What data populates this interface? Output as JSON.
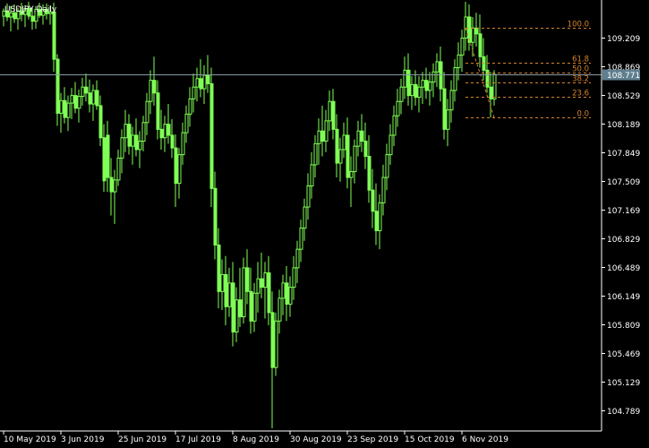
{
  "chart_data": {
    "type": "candlestick",
    "title": "USDJPY,Daily",
    "symbol": "USDJPY",
    "timeframe": "Daily",
    "background_color": "#000000",
    "candle_color": "#7fff55",
    "axis_color": "#ffffff",
    "fib_color": "#d9822b",
    "current_price": 108.771,
    "current_price_label": "108.771",
    "current_price_badge_color": "#5f7f8f",
    "grid": false,
    "ylim": [
      104.58,
      109.63
    ],
    "y_ticks": [
      "109.209",
      "108.869",
      "108.529",
      "108.189",
      "107.849",
      "107.509",
      "107.169",
      "106.829",
      "106.489",
      "106.149",
      "105.809",
      "105.469",
      "105.129",
      "104.789"
    ],
    "x_ticks": [
      {
        "label": "10 May 2019",
        "index": 0
      },
      {
        "label": "3 Jun 2019",
        "index": 16
      },
      {
        "label": "25 Jun 2019",
        "index": 32
      },
      {
        "label": "17 Jul 2019",
        "index": 48
      },
      {
        "label": "8 Aug 2019",
        "index": 64
      },
      {
        "label": "30 Aug 2019",
        "index": 80
      },
      {
        "label": "23 Sep 2019",
        "index": 96
      },
      {
        "label": "15 Oct 2019",
        "index": 112
      },
      {
        "label": "6 Nov 2019",
        "index": 128
      }
    ],
    "fibonacci": {
      "start_index": 129,
      "end_index": 164,
      "levels": [
        {
          "label": "100.0",
          "price": 109.32
        },
        {
          "label": "61.8",
          "price": 108.91
        },
        {
          "label": "50.0",
          "price": 108.79
        },
        {
          "label": "38.2",
          "price": 108.67
        },
        {
          "label": "23.6",
          "price": 108.51
        },
        {
          "label": "0.0",
          "price": 108.26
        }
      ]
    },
    "series": [
      {
        "values_ohlc": [
          [
            109.46,
            109.55,
            109.34,
            109.52
          ],
          [
            109.52,
            109.61,
            109.4,
            109.45
          ],
          [
            109.45,
            109.58,
            109.28,
            109.5
          ],
          [
            109.5,
            109.6,
            109.38,
            109.43
          ],
          [
            109.43,
            109.56,
            109.3,
            109.52
          ],
          [
            109.52,
            109.62,
            109.4,
            109.48
          ],
          [
            109.48,
            109.59,
            109.33,
            109.55
          ],
          [
            109.55,
            109.63,
            109.42,
            109.46
          ],
          [
            109.46,
            109.57,
            109.3,
            109.4
          ],
          [
            109.4,
            109.58,
            109.31,
            109.54
          ],
          [
            109.54,
            109.62,
            109.44,
            109.47
          ],
          [
            109.47,
            109.6,
            109.36,
            109.54
          ],
          [
            109.54,
            109.61,
            109.42,
            109.49
          ],
          [
            109.49,
            109.58,
            109.36,
            109.51
          ],
          [
            109.51,
            109.62,
            108.8,
            108.95
          ],
          [
            108.95,
            109.01,
            108.16,
            108.31
          ],
          [
            108.31,
            108.55,
            108.08,
            108.46
          ],
          [
            108.46,
            108.62,
            108.19,
            108.26
          ],
          [
            108.26,
            108.52,
            108.1,
            108.43
          ],
          [
            108.43,
            108.61,
            108.24,
            108.52
          ],
          [
            108.52,
            108.68,
            108.31,
            108.37
          ],
          [
            108.37,
            108.59,
            108.2,
            108.51
          ],
          [
            108.51,
            108.73,
            108.4,
            108.62
          ],
          [
            108.62,
            108.78,
            108.45,
            108.55
          ],
          [
            108.55,
            108.71,
            108.32,
            108.42
          ],
          [
            108.42,
            108.65,
            108.22,
            108.58
          ],
          [
            108.58,
            108.7,
            108.35,
            108.4
          ],
          [
            108.4,
            108.52,
            107.92,
            108.02
          ],
          [
            108.02,
            108.18,
            107.38,
            107.51
          ],
          [
            108.05,
            108.22,
            107.38,
            107.55
          ],
          [
            107.55,
            107.78,
            107.1,
            107.38
          ],
          [
            107.38,
            107.64,
            107.0,
            107.52
          ],
          [
            107.52,
            107.88,
            107.45,
            107.78
          ],
          [
            107.78,
            108.12,
            107.6,
            108.02
          ],
          [
            108.02,
            108.35,
            107.85,
            108.18
          ],
          [
            108.18,
            108.3,
            107.82,
            107.92
          ],
          [
            107.92,
            108.15,
            107.7,
            108.05
          ],
          [
            108.05,
            108.25,
            107.8,
            107.88
          ],
          [
            107.88,
            108.1,
            107.66,
            107.98
          ],
          [
            107.98,
            108.28,
            107.86,
            108.2
          ],
          [
            108.2,
            108.55,
            108.05,
            108.45
          ],
          [
            108.45,
            108.82,
            108.3,
            108.7
          ],
          [
            108.7,
            108.98,
            108.4,
            108.55
          ],
          [
            108.55,
            108.7,
            108.0,
            108.12
          ],
          [
            108.12,
            108.35,
            107.88,
            108.02
          ],
          [
            108.02,
            108.28,
            107.85,
            108.18
          ],
          [
            108.18,
            108.42,
            107.95,
            108.05
          ],
          [
            108.05,
            108.24,
            107.78,
            107.9
          ],
          [
            107.9,
            108.06,
            107.2,
            107.48
          ],
          [
            107.48,
            107.9,
            107.3,
            107.82
          ],
          [
            107.82,
            108.2,
            107.7,
            108.08
          ],
          [
            108.08,
            108.4,
            107.96,
            108.3
          ],
          [
            108.3,
            108.62,
            108.15,
            108.48
          ],
          [
            108.48,
            108.78,
            108.32,
            108.62
          ],
          [
            108.62,
            108.85,
            108.45,
            108.72
          ],
          [
            108.72,
            108.95,
            108.5,
            108.6
          ],
          [
            108.6,
            108.88,
            108.42,
            108.76
          ],
          [
            108.76,
            109.0,
            108.55,
            108.66
          ],
          [
            108.66,
            108.85,
            107.2,
            107.42
          ],
          [
            107.42,
            107.62,
            106.58,
            106.75
          ],
          [
            106.75,
            106.95,
            106.0,
            106.2
          ],
          [
            106.2,
            106.58,
            105.98,
            106.4
          ],
          [
            106.4,
            106.62,
            105.8,
            106.02
          ],
          [
            106.02,
            106.48,
            105.9,
            106.3
          ],
          [
            106.3,
            106.55,
            105.55,
            105.72
          ],
          [
            105.72,
            106.25,
            105.6,
            106.1
          ],
          [
            106.1,
            106.48,
            105.78,
            105.9
          ],
          [
            105.9,
            106.6,
            105.82,
            106.48
          ],
          [
            106.48,
            106.7,
            106.05,
            106.2
          ],
          [
            106.2,
            106.48,
            105.7,
            105.85
          ],
          [
            105.85,
            106.3,
            105.72,
            106.18
          ],
          [
            106.18,
            106.55,
            105.95,
            106.35
          ],
          [
            106.35,
            106.66,
            106.12,
            106.25
          ],
          [
            106.25,
            106.55,
            105.88,
            106.42
          ],
          [
            106.42,
            106.62,
            105.8,
            105.95
          ],
          [
            105.95,
            106.2,
            104.58,
            105.3
          ],
          [
            105.3,
            105.95,
            105.2,
            105.85
          ],
          [
            105.85,
            106.22,
            105.7,
            106.12
          ],
          [
            106.12,
            106.4,
            105.92,
            106.3
          ],
          [
            106.3,
            106.5,
            105.85,
            106.05
          ],
          [
            106.05,
            106.38,
            105.9,
            106.25
          ],
          [
            106.25,
            106.62,
            106.1,
            106.48
          ],
          [
            106.48,
            106.8,
            106.3,
            106.7
          ],
          [
            106.7,
            107.05,
            106.55,
            106.95
          ],
          [
            106.95,
            107.3,
            106.8,
            107.2
          ],
          [
            107.2,
            107.6,
            107.05,
            107.45
          ],
          [
            107.45,
            107.85,
            107.3,
            107.7
          ],
          [
            107.7,
            108.05,
            107.55,
            107.95
          ],
          [
            107.95,
            108.25,
            107.7,
            108.1
          ],
          [
            108.1,
            108.4,
            107.8,
            107.98
          ],
          [
            107.98,
            108.35,
            107.85,
            108.22
          ],
          [
            108.22,
            108.58,
            108.1,
            108.45
          ],
          [
            108.45,
            108.6,
            108.0,
            108.12
          ],
          [
            108.12,
            108.3,
            107.55,
            107.72
          ],
          [
            107.72,
            108.02,
            107.5,
            107.88
          ],
          [
            107.88,
            108.2,
            107.78,
            108.05
          ],
          [
            108.05,
            108.26,
            107.42,
            107.55
          ],
          [
            107.55,
            107.8,
            107.2,
            107.62
          ],
          [
            107.62,
            108.0,
            107.48,
            107.92
          ],
          [
            107.92,
            108.22,
            107.8,
            108.1
          ],
          [
            108.1,
            108.3,
            107.85,
            107.98
          ],
          [
            107.98,
            108.2,
            107.65,
            107.8
          ],
          [
            107.8,
            108.05,
            107.25,
            107.4
          ],
          [
            107.4,
            107.65,
            106.95,
            107.15
          ],
          [
            107.15,
            107.48,
            106.75,
            106.92
          ],
          [
            106.92,
            107.35,
            106.7,
            107.25
          ],
          [
            107.25,
            107.7,
            107.1,
            107.55
          ],
          [
            107.55,
            107.95,
            107.4,
            107.82
          ],
          [
            107.82,
            108.18,
            107.7,
            108.05
          ],
          [
            108.05,
            108.4,
            107.92,
            108.28
          ],
          [
            108.28,
            108.6,
            108.15,
            108.45
          ],
          [
            108.45,
            108.72,
            108.3,
            108.62
          ],
          [
            108.62,
            108.98,
            108.48,
            108.82
          ],
          [
            108.82,
            109.02,
            108.4,
            108.52
          ],
          [
            108.52,
            108.75,
            108.35,
            108.65
          ],
          [
            108.65,
            108.82,
            108.4,
            108.5
          ],
          [
            108.5,
            108.75,
            108.32,
            108.62
          ],
          [
            108.62,
            108.8,
            108.42,
            108.7
          ],
          [
            108.7,
            108.85,
            108.48,
            108.58
          ],
          [
            108.58,
            108.8,
            108.4,
            108.68
          ],
          [
            108.68,
            108.9,
            108.5,
            108.8
          ],
          [
            108.8,
            109.02,
            108.62,
            108.92
          ],
          [
            108.92,
            109.1,
            108.45,
            108.6
          ],
          [
            108.6,
            108.8,
            108.0,
            108.12
          ],
          [
            108.12,
            108.48,
            107.92,
            108.35
          ],
          [
            108.35,
            108.7,
            108.2,
            108.58
          ],
          [
            108.58,
            108.95,
            108.45,
            108.85
          ],
          [
            108.85,
            109.15,
            108.7,
            109.0
          ],
          [
            109.0,
            109.3,
            108.8,
            109.2
          ],
          [
            109.2,
            109.63,
            109.05,
            109.45
          ],
          [
            109.45,
            109.6,
            109.05,
            109.15
          ],
          [
            109.15,
            109.45,
            108.98,
            109.32
          ],
          [
            109.32,
            109.5,
            109.1,
            109.25
          ],
          [
            109.25,
            109.48,
            108.85,
            108.98
          ],
          [
            108.98,
            109.2,
            108.7,
            108.82
          ],
          [
            108.82,
            109.0,
            108.55,
            108.62
          ],
          [
            108.62,
            108.8,
            108.26,
            108.48
          ],
          [
            108.48,
            108.82,
            108.4,
            108.77
          ]
        ]
      }
    ]
  }
}
